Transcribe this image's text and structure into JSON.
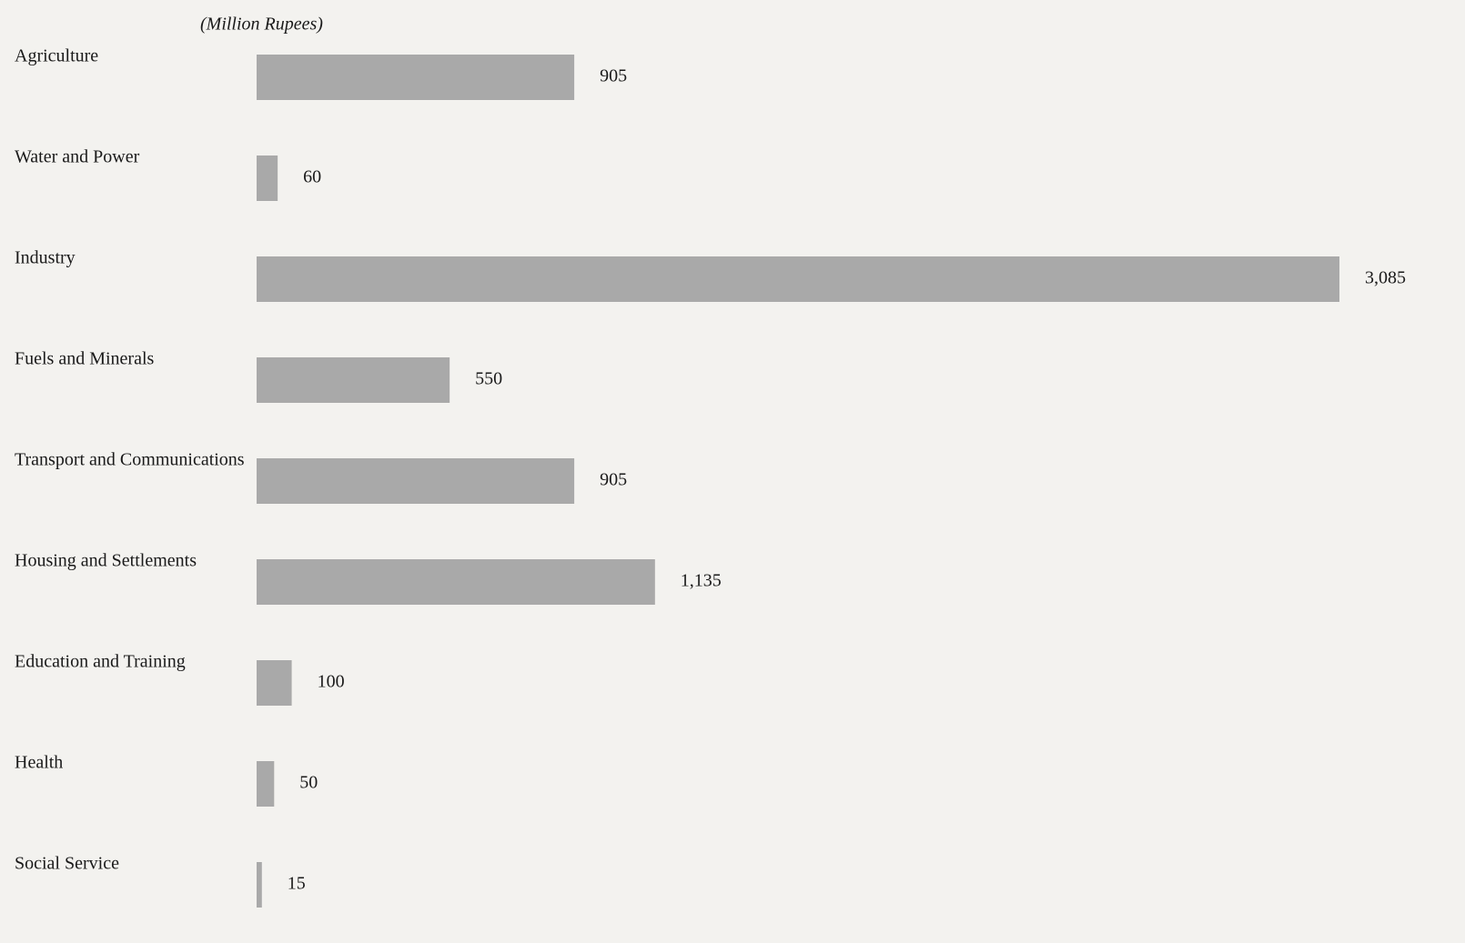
{
  "chart_data": {
    "type": "hbar",
    "subtitle": "(Million Rupees)",
    "categories": [
      "Agriculture",
      "Water and Power",
      "Industry",
      "Fuels and Minerals",
      "Transport and Communications",
      "Housing and Settlements",
      "Education and Training",
      "Health",
      "Social Service"
    ],
    "values": [
      905,
      60,
      3085,
      550,
      905,
      1135,
      100,
      50,
      15
    ],
    "value_labels": [
      "905",
      "60",
      "3,085",
      "550",
      "905",
      "1,135",
      "100",
      "50",
      "15"
    ],
    "color": "#a9a9a9"
  }
}
